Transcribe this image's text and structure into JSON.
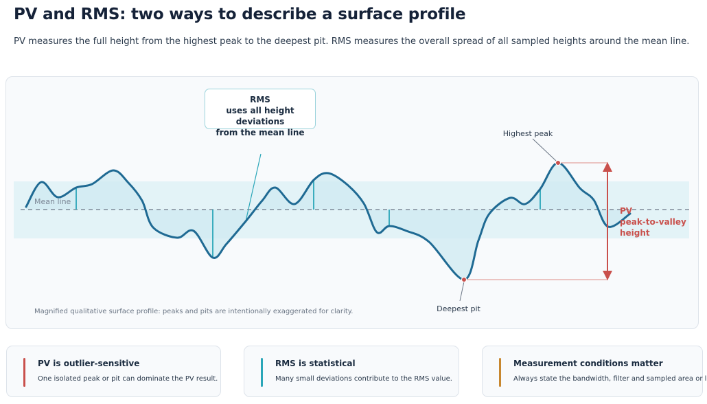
{
  "header": {
    "title": "PV and RMS: two ways to describe a surface profile",
    "subtitle": "PV measures the full height from the highest peak to the deepest pit. RMS measures the overall spread of all sampled heights around the mean line."
  },
  "diagram": {
    "mean_line_label": "Mean line",
    "rms_callout": [
      "RMS",
      "uses all height deviations",
      "from the mean line"
    ],
    "highest_peak_label": "Highest peak",
    "deepest_pit_label": "Deepest pit",
    "pv_label": [
      "PV",
      "peak-to-valley",
      "height"
    ],
    "caption": "Magnified qualitative surface profile: peaks and pits are intentionally exaggerated for clarity.",
    "colors": {
      "profile": "#1f6a93",
      "rms_band": "#e3f3f7",
      "deviation": "#2aa6b8",
      "pv": "#c9504c",
      "mean_line": "#6b7685"
    }
  },
  "cards": [
    {
      "title": "PV is outlier-sensitive",
      "text": "One isolated peak or pit can dominate the PV result.",
      "accent": "#c9504c"
    },
    {
      "title": "RMS is statistical",
      "text": "Many small deviations contribute to the RMS value.",
      "accent": "#2aa6b8"
    },
    {
      "title": "Measurement conditions matter",
      "text": "Always state the bandwidth, filter and sampled area or length.",
      "accent": "#c7872f"
    }
  ]
}
